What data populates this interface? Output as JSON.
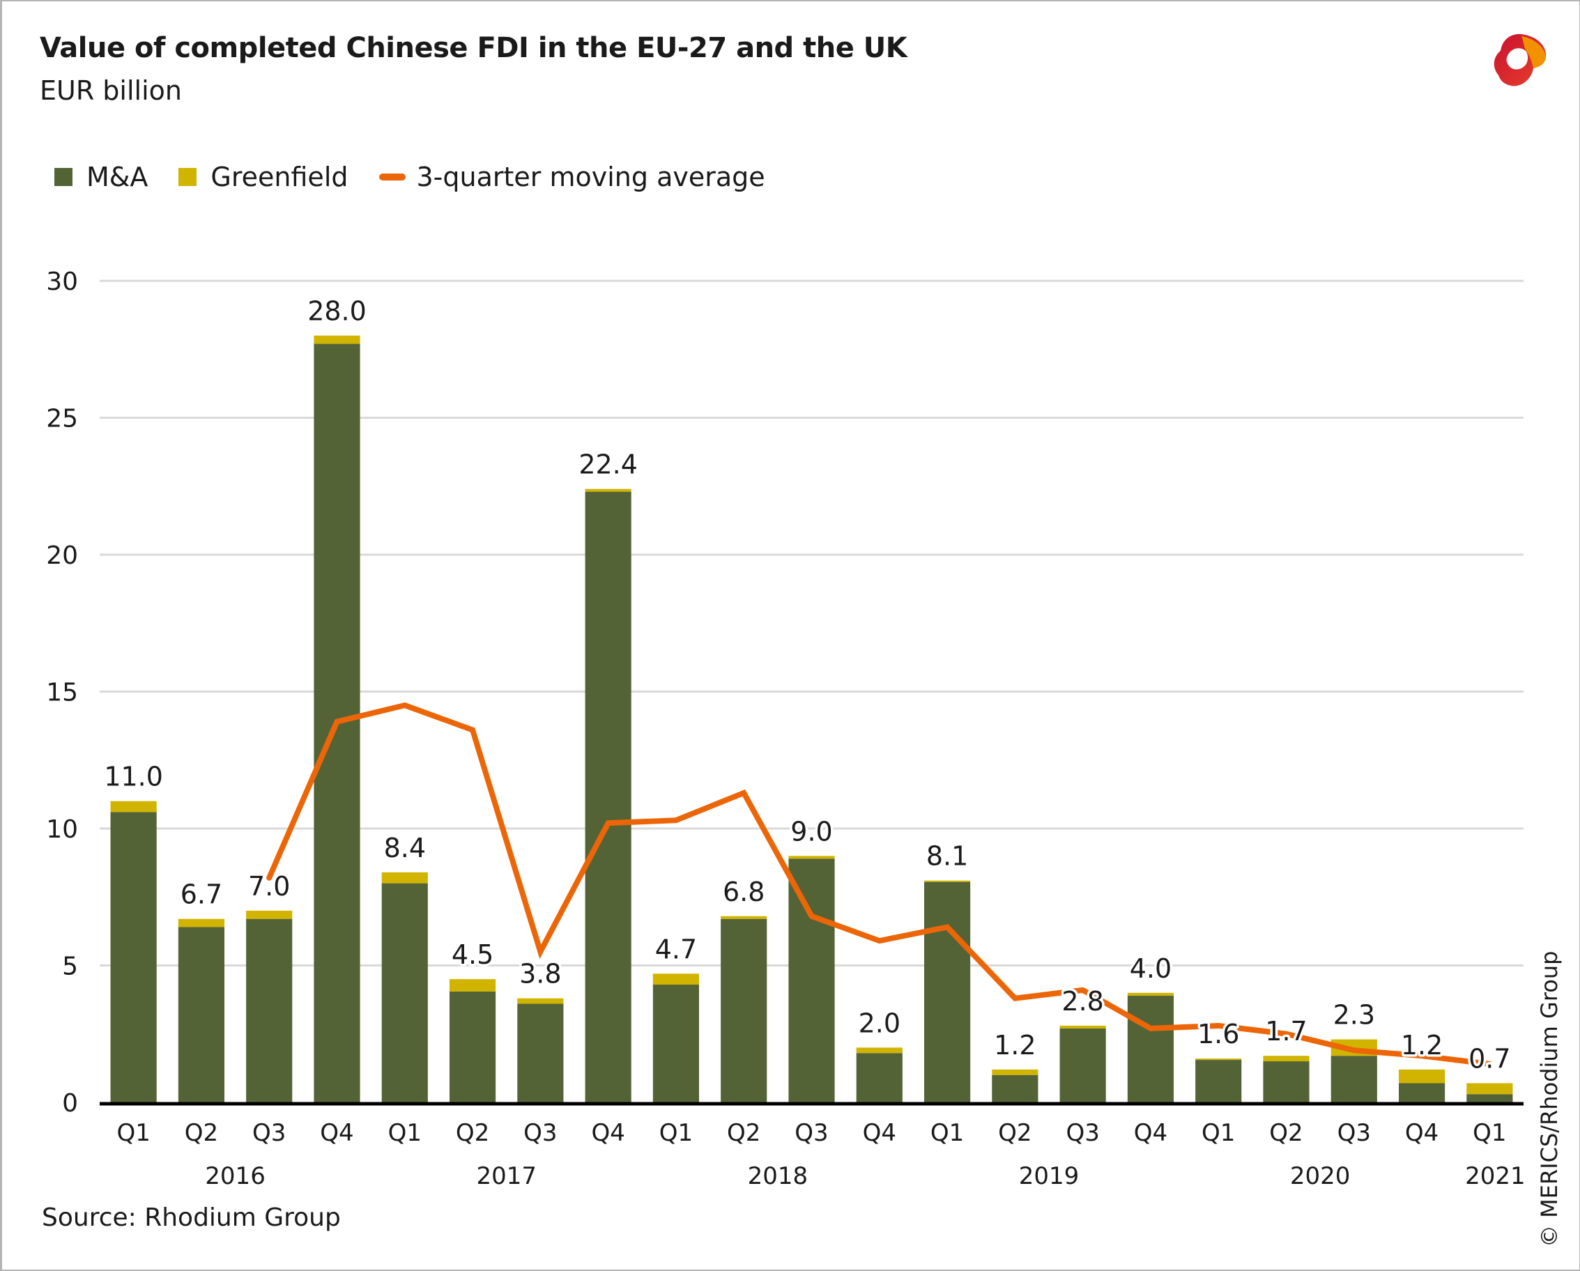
{
  "header": {
    "title": "Value of completed Chinese FDI in the EU-27 and the UK",
    "subtitle": "EUR billion"
  },
  "legend": [
    {
      "label": "M&A",
      "color": "#536336",
      "kind": "swatch"
    },
    {
      "label": "Greenfield",
      "color": "#d1b400",
      "kind": "swatch"
    },
    {
      "label": "3-quarter moving average",
      "color": "#ec6608",
      "kind": "line"
    }
  ],
  "footer": {
    "source": "Source: Rhodium Group",
    "copyright": "© MERICS/Rhodium Group"
  },
  "chart_data": {
    "type": "bar",
    "stacked": true,
    "title": "Value of completed Chinese FDI in the EU-27 and the UK",
    "subtitle": "EUR billion",
    "xlabel": "",
    "ylabel": "EUR billion",
    "ylim": [
      0,
      30
    ],
    "yticks": [
      0,
      5,
      10,
      15,
      20,
      25,
      30
    ],
    "grid": true,
    "legend_position": "top-left",
    "categories": [
      "Q1",
      "Q2",
      "Q3",
      "Q4",
      "Q1",
      "Q2",
      "Q3",
      "Q4",
      "Q1",
      "Q2",
      "Q3",
      "Q4",
      "Q1",
      "Q2",
      "Q3",
      "Q4",
      "Q1",
      "Q2",
      "Q3",
      "Q4",
      "Q1"
    ],
    "year_groups": [
      {
        "label": "2016",
        "start": 0,
        "end": 3
      },
      {
        "label": "2017",
        "start": 4,
        "end": 7
      },
      {
        "label": "2018",
        "start": 8,
        "end": 11
      },
      {
        "label": "2019",
        "start": 12,
        "end": 15
      },
      {
        "label": "2020",
        "start": 16,
        "end": 19
      },
      {
        "label": "2021",
        "start": 20,
        "end": 20
      }
    ],
    "totals_labels": [
      "11.0",
      "6.7",
      "7.0",
      "28.0",
      "8.4",
      "4.5",
      "3.8",
      "22.4",
      "4.7",
      "6.8",
      "9.0",
      "2.0",
      "8.1",
      "1.2",
      "2.8",
      "4.0",
      "1.6",
      "1.7",
      "2.3",
      "1.2",
      "0.7"
    ],
    "series": [
      {
        "name": "M&A",
        "color": "#536336",
        "values": [
          10.6,
          6.4,
          6.7,
          27.7,
          8.0,
          4.05,
          3.6,
          22.3,
          4.3,
          6.7,
          8.9,
          1.8,
          8.05,
          1.0,
          2.7,
          3.9,
          1.55,
          1.5,
          1.7,
          0.7,
          0.3
        ]
      },
      {
        "name": "Greenfield",
        "color": "#d1b400",
        "values": [
          0.4,
          0.3,
          0.3,
          0.3,
          0.4,
          0.45,
          0.2,
          0.1,
          0.4,
          0.1,
          0.1,
          0.2,
          0.05,
          0.2,
          0.1,
          0.1,
          0.05,
          0.2,
          0.6,
          0.5,
          0.4
        ]
      },
      {
        "name": "3-quarter moving average",
        "type": "line",
        "color": "#ec6608",
        "values": [
          null,
          null,
          8.2,
          13.9,
          14.5,
          13.6,
          5.5,
          10.2,
          10.3,
          11.3,
          6.8,
          5.9,
          6.4,
          3.8,
          4.1,
          2.7,
          2.8,
          2.5,
          1.9,
          1.7,
          1.4
        ]
      }
    ]
  }
}
